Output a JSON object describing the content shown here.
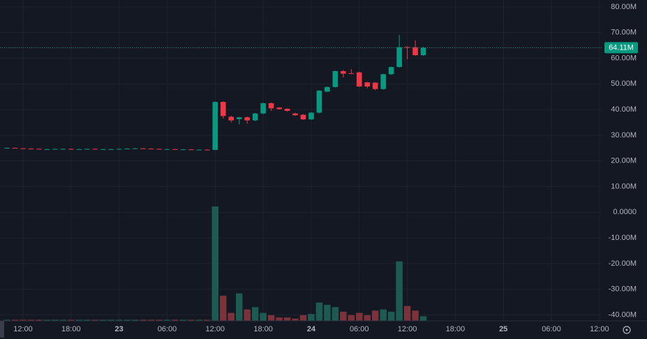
{
  "chart_data": {
    "type": "candlestick",
    "categories": [
      null,
      null,
      "12:00",
      null,
      null,
      null,
      null,
      null,
      "18:00",
      null,
      null,
      null,
      null,
      null,
      "23",
      null,
      null,
      null,
      null,
      null,
      "06:00",
      null,
      null,
      null,
      null,
      null,
      "12:00",
      null,
      null,
      null,
      null,
      null,
      "18:00",
      null,
      null,
      null,
      null,
      null,
      "24",
      null,
      null,
      null,
      null,
      null,
      "06:00",
      null,
      null,
      null,
      null,
      null,
      "12:00",
      null,
      null,
      null,
      null,
      null,
      "18:00",
      null,
      null,
      null,
      null,
      null,
      "25",
      null,
      null,
      null,
      null,
      null,
      "06:00",
      null,
      null,
      null,
      null,
      null,
      "12:00"
    ],
    "open": [
      25.0,
      25.1,
      24.9,
      24.8,
      24.7,
      24.6,
      24.6,
      24.7,
      24.7,
      24.6,
      24.6,
      24.7,
      24.6,
      24.6,
      24.6,
      24.7,
      24.8,
      24.9,
      24.8,
      24.7,
      24.6,
      24.6,
      24.5,
      24.5,
      24.4,
      24.4,
      24.3,
      43.0,
      37.2,
      36.3,
      37.0,
      35.8,
      38.5,
      42.5,
      40.8,
      40.3,
      38.5,
      38.0,
      36.2,
      38.8,
      47.0,
      48.8,
      55.0,
      54.2,
      54.5,
      50.6,
      50.5,
      48.0,
      53.8,
      56.6,
      64.4,
      64.3,
      61.2,
      null,
      null,
      null,
      null,
      null,
      null,
      null,
      null,
      null,
      null,
      null,
      null,
      null,
      null,
      null,
      null,
      null,
      null,
      null,
      null,
      null,
      null
    ],
    "high": [
      25.2,
      25.2,
      25.0,
      24.9,
      24.8,
      24.7,
      24.8,
      24.8,
      24.8,
      24.7,
      24.8,
      24.8,
      24.7,
      24.7,
      24.8,
      24.9,
      25.0,
      25.0,
      24.9,
      24.8,
      24.7,
      24.7,
      24.6,
      24.6,
      24.5,
      24.5,
      43.2,
      43.2,
      37.6,
      37.2,
      37.3,
      38.7,
      42.7,
      42.8,
      41.0,
      40.5,
      38.8,
      38.3,
      39.0,
      47.6,
      49.0,
      55.2,
      55.4,
      55.8,
      54.8,
      50.8,
      50.7,
      54.0,
      56.8,
      69.1,
      64.6,
      67.0,
      64.5,
      null,
      null,
      null,
      null,
      null,
      null,
      null,
      null,
      null,
      null,
      null,
      null,
      null,
      null,
      null,
      null,
      null,
      null,
      null,
      null,
      null,
      null
    ],
    "low": [
      24.9,
      24.8,
      24.7,
      24.6,
      24.5,
      24.5,
      24.5,
      24.6,
      24.5,
      24.5,
      24.5,
      24.5,
      24.5,
      24.5,
      24.5,
      24.6,
      24.7,
      24.7,
      24.6,
      24.5,
      24.5,
      24.4,
      24.4,
      24.3,
      24.3,
      24.2,
      24.2,
      36.5,
      35.0,
      34.3,
      34.5,
      35.5,
      38.2,
      39.5,
      40.0,
      39.3,
      37.6,
      36.0,
      36.0,
      38.6,
      46.8,
      48.6,
      52.5,
      53.8,
      48.8,
      48.3,
      47.5,
      47.8,
      53.5,
      56.4,
      59.6,
      61.0,
      61.0,
      null,
      null,
      null,
      null,
      null,
      null,
      null,
      null,
      null,
      null,
      null,
      null,
      null,
      null,
      null,
      null,
      null,
      null,
      null,
      null,
      null,
      null
    ],
    "close": [
      25.1,
      24.9,
      24.8,
      24.7,
      24.6,
      24.6,
      24.7,
      24.7,
      24.6,
      24.6,
      24.7,
      24.6,
      24.6,
      24.6,
      24.7,
      24.8,
      24.9,
      24.8,
      24.7,
      24.6,
      24.6,
      24.5,
      24.5,
      24.4,
      24.4,
      24.3,
      43.0,
      37.5,
      35.8,
      37.0,
      35.8,
      38.5,
      42.5,
      40.5,
      40.2,
      39.5,
      37.8,
      36.2,
      38.8,
      47.4,
      48.8,
      55.0,
      54.0,
      54.0,
      49.0,
      49.0,
      48.0,
      53.8,
      56.6,
      64.3,
      64.2,
      61.2,
      64.11,
      null,
      null,
      null,
      null,
      null,
      null,
      null,
      null,
      null,
      null,
      null,
      null,
      null,
      null,
      null,
      null,
      null,
      null,
      null,
      null,
      null,
      null
    ],
    "volume": [
      1,
      1,
      1,
      1,
      1,
      1,
      1,
      1,
      1,
      1,
      1,
      1,
      1,
      1,
      1,
      1,
      1,
      1,
      1,
      1,
      1,
      1,
      1,
      1,
      1,
      1,
      100,
      22,
      7,
      24,
      10,
      12,
      7,
      5,
      3,
      3,
      2,
      5,
      6,
      16,
      14,
      12,
      8,
      5,
      7,
      5,
      9,
      10,
      8,
      52,
      13,
      9,
      4,
      null,
      null,
      null,
      null,
      null,
      null,
      null,
      null,
      null,
      null,
      null,
      null,
      null,
      null,
      null,
      null,
      null,
      null,
      null,
      null,
      null,
      null
    ],
    "volume_ylim": [
      0,
      100
    ],
    "ylim": [
      -42.3,
      82.7
    ],
    "yticks": [
      {
        "value": 80,
        "label": "80.00M"
      },
      {
        "value": 70,
        "label": "70.00M"
      },
      {
        "value": 60,
        "label": "60.00M"
      },
      {
        "value": 50,
        "label": "50.00M"
      },
      {
        "value": 40,
        "label": "40.00M"
      },
      {
        "value": 30,
        "label": "30.00M"
      },
      {
        "value": 20,
        "label": "20.00M"
      },
      {
        "value": 10,
        "label": "10.00M"
      },
      {
        "value": 0,
        "label": "0.0000"
      },
      {
        "value": -10,
        "label": "-10.00M"
      },
      {
        "value": -20,
        "label": "-20.00M"
      },
      {
        "value": -30,
        "label": "-30.00M"
      },
      {
        "value": -40,
        "label": "-40.00M"
      }
    ],
    "last_price": {
      "value": 64.11,
      "label": "64.11M"
    },
    "up_color": "#089981",
    "down_color": "#f23645",
    "volume_up_color": "#1d5b52",
    "volume_down_color": "#7b323b",
    "grid": true
  }
}
